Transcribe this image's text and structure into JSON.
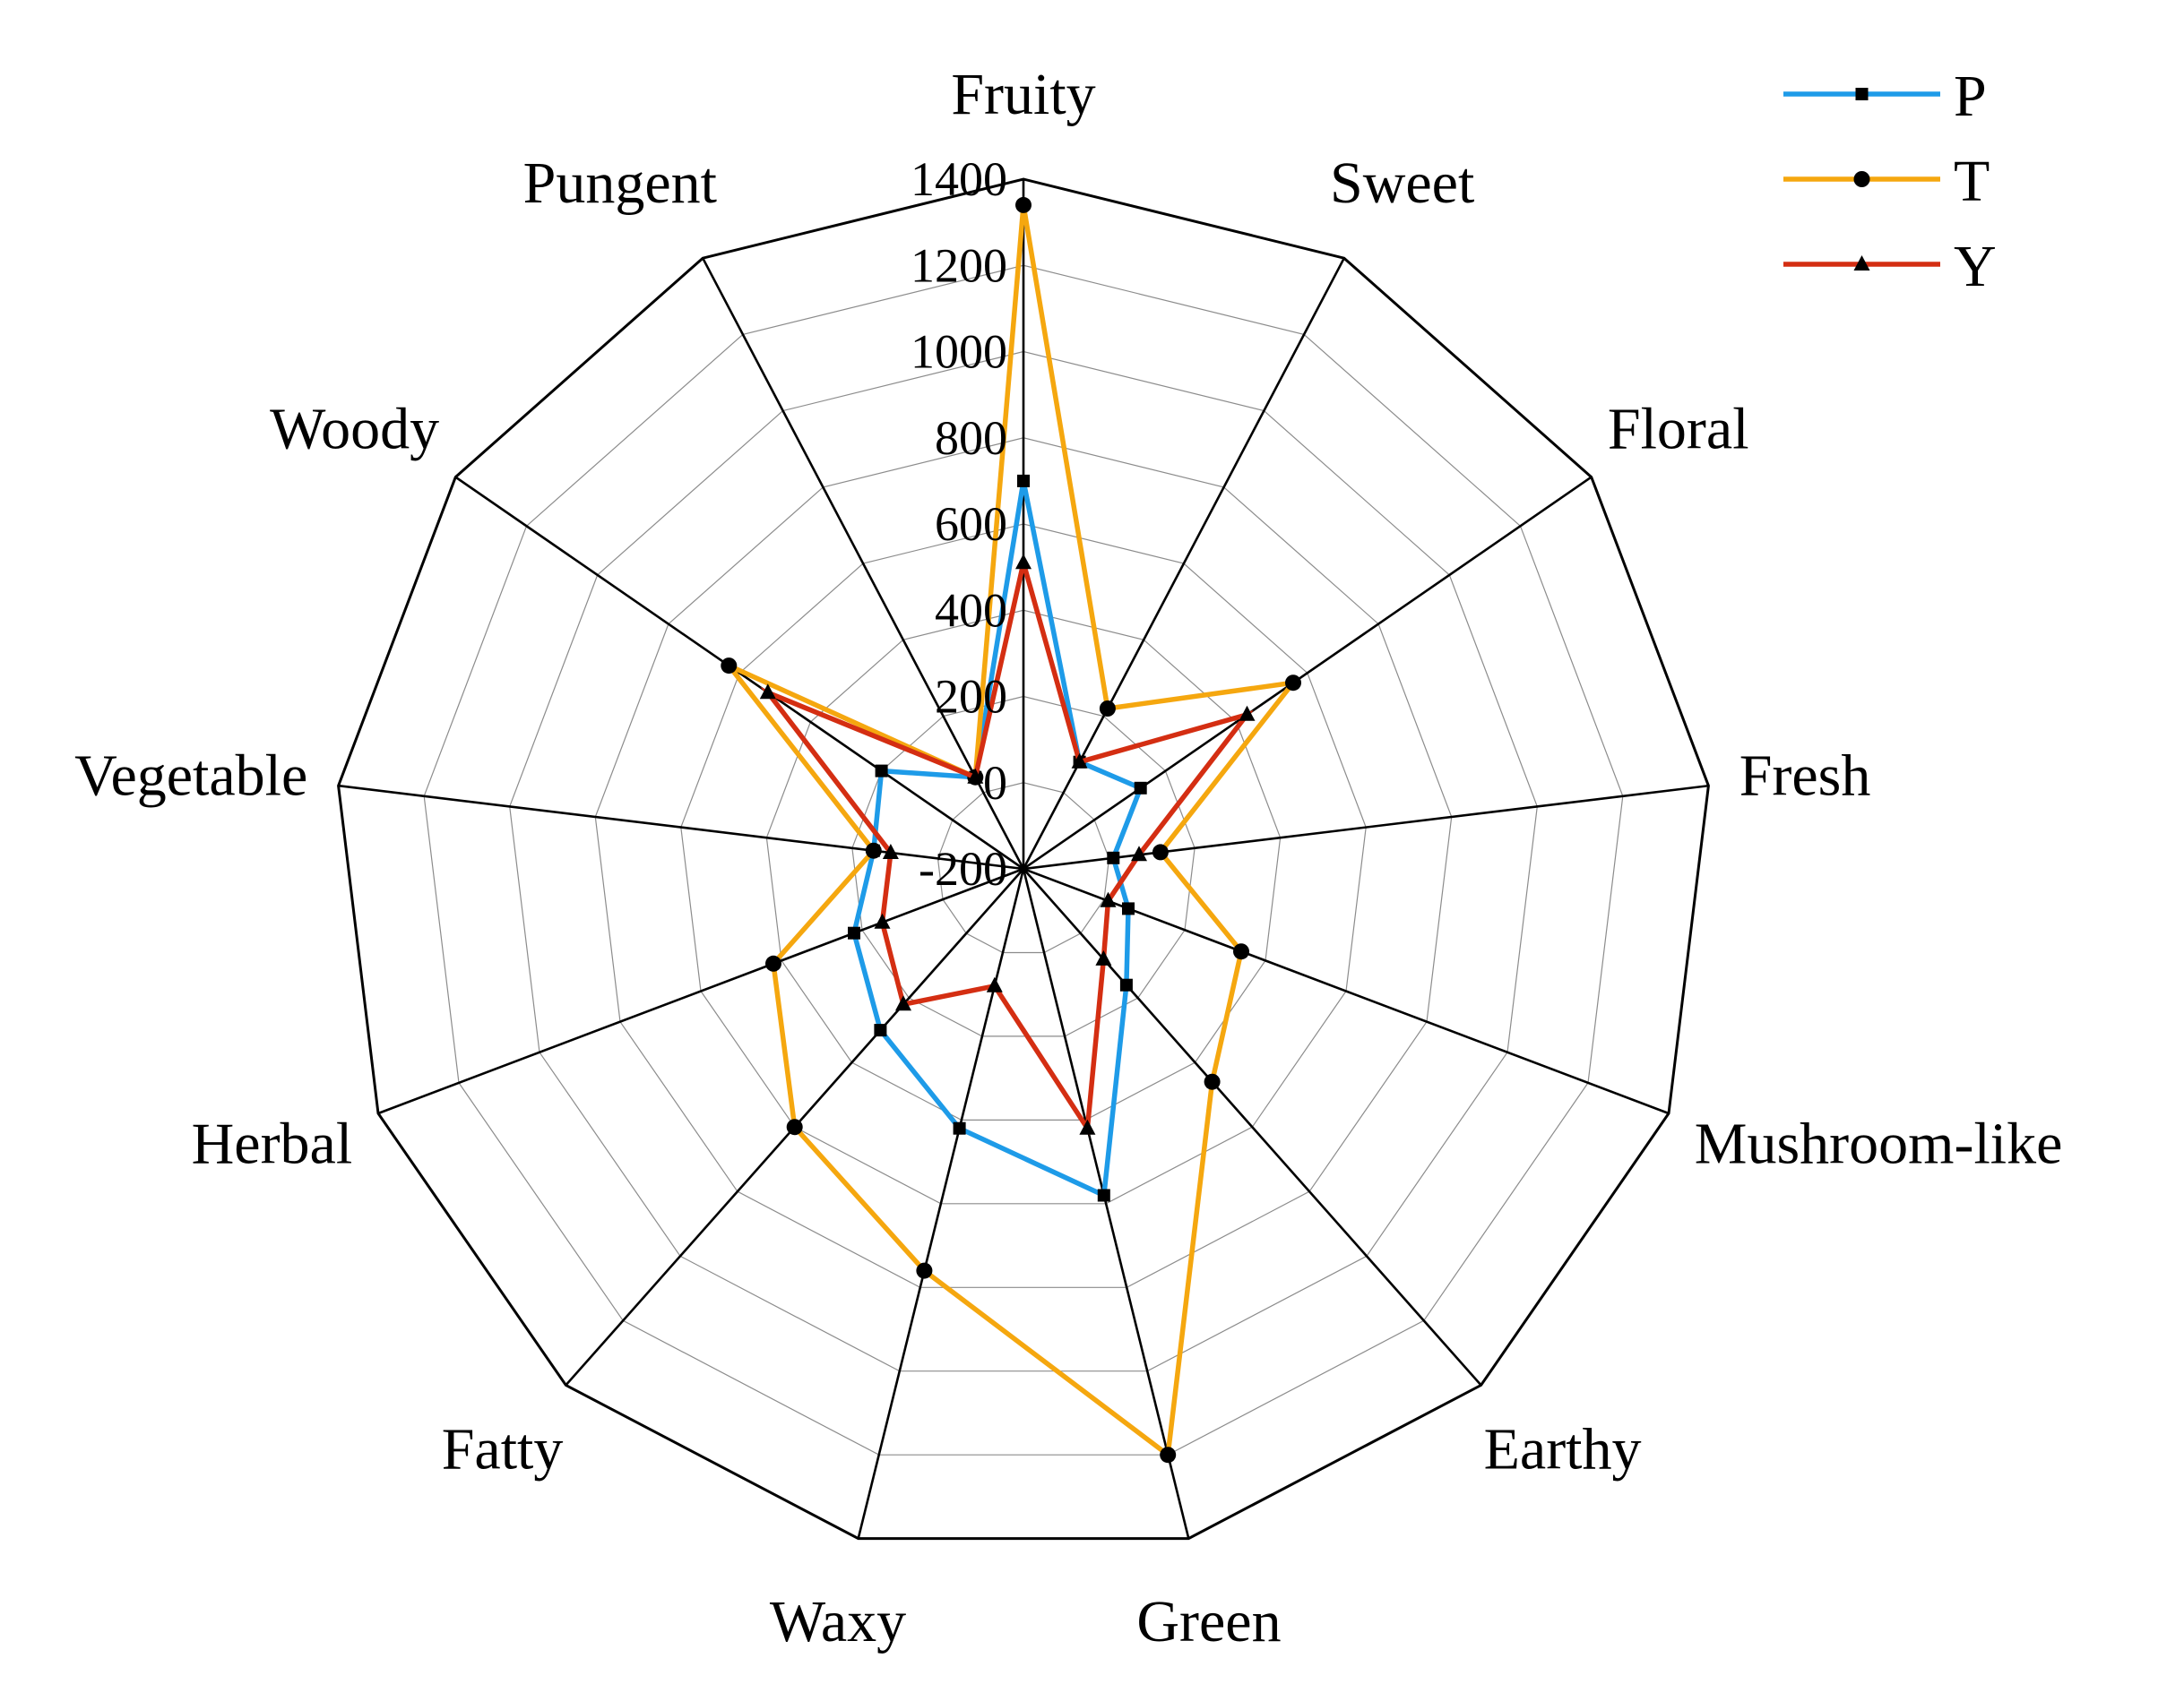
{
  "chart_data": {
    "type": "radar",
    "title": "",
    "categories": [
      "Fruity",
      "Sweet",
      "Floral",
      "Fresh",
      "Mushroom-like",
      "Earthy",
      "Green",
      "Waxy",
      "Fatty",
      "Herbal",
      "Vegetable",
      "Woody",
      "Pungent"
    ],
    "rlim": [
      -200,
      1400
    ],
    "ticks": [
      -200,
      0,
      200,
      400,
      600,
      800,
      1000,
      1200,
      1400
    ],
    "tick_labels": [
      "-200",
      "0",
      "200",
      "400",
      "600",
      "800",
      "1000",
      "1200",
      "1400"
    ],
    "grid": true,
    "legend": "top-right",
    "series": [
      {
        "name": "P",
        "marker": "square",
        "color": "#1e9be8",
        "values": [
          700,
          80,
          130,
          10,
          60,
          160,
          580,
          420,
          300,
          220,
          150,
          200,
          40
        ]
      },
      {
        "name": "T",
        "marker": "circle",
        "color": "#f5a70f",
        "values": [
          1340,
          220,
          560,
          120,
          340,
          460,
          1200,
          760,
          600,
          420,
          150,
          630,
          40
        ]
      },
      {
        "name": "Y",
        "marker": "triangle",
        "color": "#d42e12",
        "values": [
          510,
          80,
          430,
          70,
          10,
          80,
          420,
          80,
          220,
          150,
          110,
          520,
          40
        ]
      }
    ]
  }
}
